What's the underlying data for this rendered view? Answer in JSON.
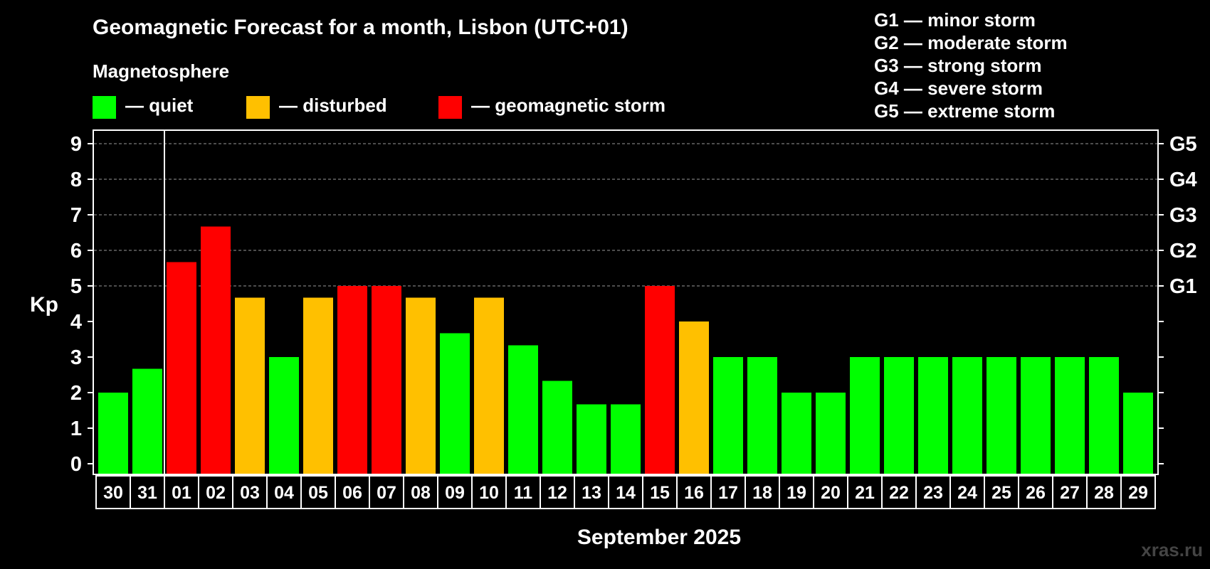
{
  "chart_data": {
    "type": "bar",
    "title": "Geomagnetic Forecast for a month, Lisbon (UTC+01)",
    "subtitle": "Magnetosphere",
    "ylabel": "Kp",
    "xlabel": "September 2025",
    "ylim": [
      0,
      9
    ],
    "yticks": [
      "0",
      "1",
      "2",
      "3",
      "4",
      "5",
      "6",
      "7",
      "8",
      "9"
    ],
    "right_ticks": [
      {
        "kp": 5,
        "label": "G1"
      },
      {
        "kp": 6,
        "label": "G2"
      },
      {
        "kp": 7,
        "label": "G3"
      },
      {
        "kp": 8,
        "label": "G4"
      },
      {
        "kp": 9,
        "label": "G5"
      }
    ],
    "grid_dashed_at": [
      5,
      6,
      7,
      8,
      9
    ],
    "categories": [
      "30",
      "31",
      "01",
      "02",
      "03",
      "04",
      "05",
      "06",
      "07",
      "08",
      "09",
      "10",
      "11",
      "12",
      "13",
      "14",
      "15",
      "16",
      "17",
      "18",
      "19",
      "20",
      "21",
      "22",
      "23",
      "24",
      "25",
      "26",
      "27",
      "28",
      "29"
    ],
    "values": [
      2,
      2.67,
      5.67,
      6.67,
      4.67,
      3,
      4.67,
      5,
      5,
      4.67,
      3.67,
      4.67,
      3.33,
      2.33,
      1.67,
      1.67,
      5,
      4,
      3,
      3,
      2,
      2,
      3,
      3,
      3,
      3,
      3,
      3,
      3,
      3,
      2
    ],
    "status": [
      "quiet",
      "quiet",
      "storm",
      "storm",
      "disturbed",
      "quiet",
      "disturbed",
      "storm",
      "storm",
      "disturbed",
      "quiet",
      "disturbed",
      "quiet",
      "quiet",
      "quiet",
      "quiet",
      "storm",
      "disturbed",
      "quiet",
      "quiet",
      "quiet",
      "quiet",
      "quiet",
      "quiet",
      "quiet",
      "quiet",
      "quiet",
      "quiet",
      "quiet",
      "quiet",
      "quiet"
    ],
    "month_separator_after_index": 1
  },
  "legend": {
    "quiet": {
      "label": "— quiet",
      "color": "#00ff00"
    },
    "disturbed": {
      "label": "— disturbed",
      "color": "#ffc000"
    },
    "storm": {
      "label": "— geomagnetic storm",
      "color": "#ff0000"
    }
  },
  "storm_scale": [
    "G1 — minor storm",
    "G2 — moderate storm",
    "G3 — strong storm",
    "G4 — severe storm",
    "G5 — extreme storm"
  ],
  "watermark": "xras.ru"
}
